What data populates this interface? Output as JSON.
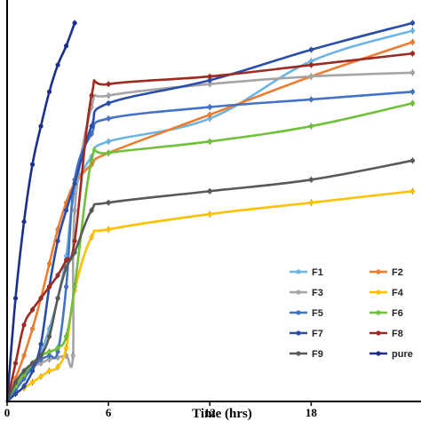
{
  "chart_data": {
    "type": "line",
    "title": "",
    "xlabel": "Time (hrs)",
    "ylabel": "",
    "xlim": [
      0,
      24.5
    ],
    "ylim": [
      0,
      105
    ],
    "x_ticks": [
      0,
      6,
      12,
      18
    ],
    "x_tick_labels": [
      "0",
      "6",
      "12",
      "18"
    ],
    "grid": false,
    "legend": {
      "placement": "bottom-right",
      "columns": 2
    },
    "series": [
      {
        "name": "F1",
        "color": "#6cb4e4",
        "x": [
          0,
          0.5,
          1,
          1.5,
          2,
          2.5,
          3,
          3.5,
          4,
          5,
          6,
          12,
          18,
          24
        ],
        "y": [
          0,
          3,
          6,
          9,
          13,
          19,
          27,
          38,
          55,
          64,
          68,
          74,
          89,
          97
        ]
      },
      {
        "name": "F2",
        "color": "#ed7d31",
        "x": [
          0,
          0.5,
          1,
          1.5,
          2,
          2.5,
          3,
          3.5,
          4,
          5,
          6,
          12,
          18,
          24
        ],
        "y": [
          0,
          6,
          12,
          19,
          27,
          36,
          45,
          52,
          57,
          62,
          65,
          75,
          85,
          94
        ]
      },
      {
        "name": "F3",
        "color": "#a5a5a5",
        "x": [
          0,
          0.5,
          1,
          1.5,
          2,
          2.5,
          3,
          3.5,
          3.9,
          4,
          5,
          6,
          12,
          18,
          24
        ],
        "y": [
          0,
          4,
          7,
          9,
          10,
          11,
          11.5,
          12,
          12,
          50,
          77,
          80,
          83,
          85,
          86
        ]
      },
      {
        "name": "F4",
        "color": "#ffc000",
        "x": [
          0,
          0.5,
          1,
          1.5,
          2,
          2.5,
          3,
          3.5,
          4,
          5,
          6,
          12,
          18,
          24
        ],
        "y": [
          0,
          2,
          3.5,
          5,
          6.5,
          8,
          9,
          14,
          29,
          43,
          45,
          49,
          52,
          55
        ]
      },
      {
        "name": "F5",
        "color": "#4472c4",
        "x": [
          0,
          0.5,
          1,
          1.5,
          2,
          2.5,
          3,
          3.5,
          4,
          5,
          6,
          12,
          18,
          24
        ],
        "y": [
          0,
          3,
          6,
          9,
          11,
          12,
          13,
          30,
          58,
          70,
          74,
          77,
          79,
          81
        ]
      },
      {
        "name": "F6",
        "color": "#70c03a",
        "x": [
          0,
          0.5,
          1,
          1.5,
          2,
          2.5,
          3,
          3.5,
          4,
          5,
          6,
          12,
          18,
          24
        ],
        "y": [
          0,
          4,
          7,
          10,
          12,
          13,
          14,
          17,
          30,
          63,
          65,
          68,
          72,
          78
        ]
      },
      {
        "name": "F7",
        "color": "#2a4ea8",
        "x": [
          0,
          0.5,
          1,
          1.5,
          2,
          2.5,
          3,
          3.5,
          4,
          5,
          6,
          12,
          18,
          24
        ],
        "y": [
          0,
          2,
          4,
          8,
          15,
          30,
          42,
          50,
          57,
          72,
          78,
          84,
          92,
          99
        ]
      },
      {
        "name": "F8",
        "color": "#9e2a22",
        "x": [
          0,
          0.5,
          1,
          1.5,
          2,
          2.5,
          3,
          3.5,
          4,
          5,
          6,
          12,
          18,
          24
        ],
        "y": [
          0,
          10,
          20,
          24,
          27,
          30,
          33,
          37,
          42,
          80,
          83,
          85,
          88,
          91
        ]
      },
      {
        "name": "F9",
        "color": "#595959",
        "x": [
          0,
          0.5,
          1,
          1.5,
          2,
          2.5,
          3,
          3.5,
          4,
          5,
          6,
          12,
          18,
          24
        ],
        "y": [
          0,
          5,
          8,
          10,
          12,
          17,
          27,
          35,
          39,
          50,
          52,
          55,
          58,
          63
        ]
      },
      {
        "name": "pure",
        "color": "#1c2f8c",
        "x": [
          0,
          0.5,
          1,
          1.5,
          2,
          2.5,
          3,
          3.5,
          4
        ],
        "y": [
          0,
          27,
          47,
          62,
          72,
          81,
          88,
          93,
          99
        ]
      }
    ]
  }
}
